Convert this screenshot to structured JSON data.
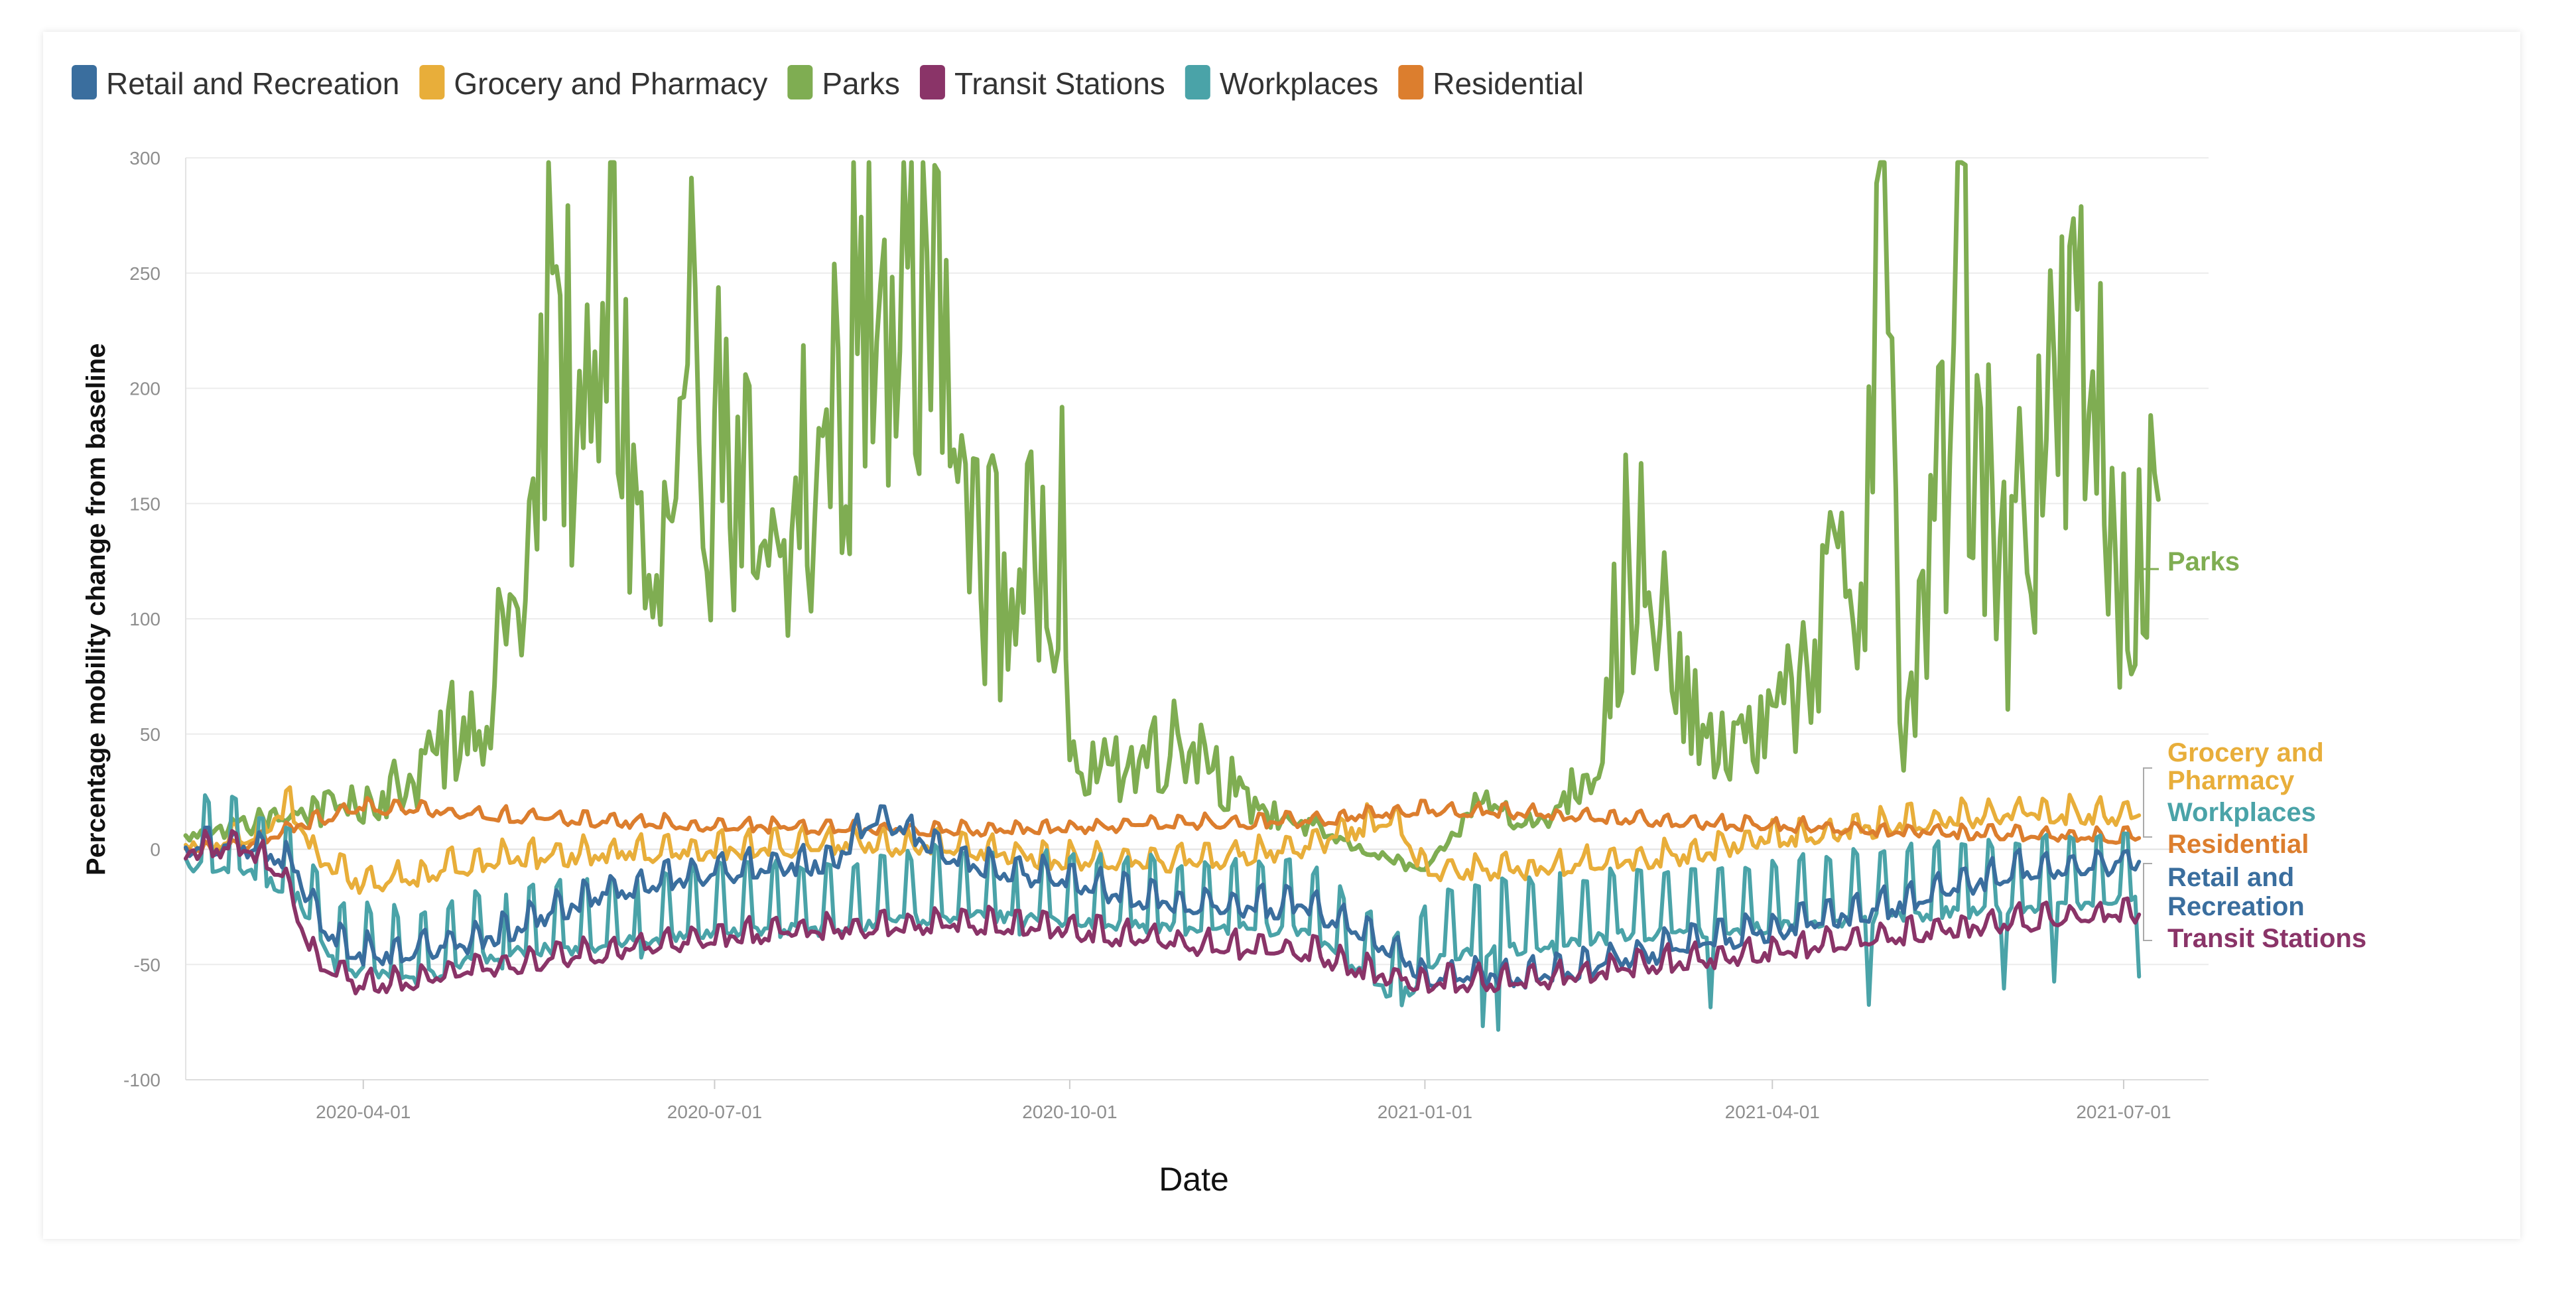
{
  "chart_data": {
    "type": "line",
    "title": "",
    "xlabel": "Date",
    "ylabel": "Percentage mobility change from baseline",
    "ylim": [
      -100,
      300
    ],
    "yticks": [
      -100,
      -50,
      0,
      50,
      100,
      150,
      200,
      250,
      300
    ],
    "xlim": [
      "2020-02-15",
      "2021-07-23"
    ],
    "xticks": [
      "2020-04-01",
      "2020-07-01",
      "2020-10-01",
      "2021-01-01",
      "2021-04-01",
      "2021-07-01"
    ],
    "grid": true,
    "legend_position": "top-left",
    "series": [
      {
        "name": "Retail and Recreation",
        "color": "#3a6e9e",
        "end_label": [
          "Retail and",
          "Recreation"
        ],
        "points": [
          [
            "2020-02-15",
            0
          ],
          [
            "2020-03-01",
            2
          ],
          [
            "2020-03-10",
            -3
          ],
          [
            "2020-03-15",
            -10
          ],
          [
            "2020-03-20",
            -30
          ],
          [
            "2020-03-28",
            -45
          ],
          [
            "2020-04-10",
            -45
          ],
          [
            "2020-05-01",
            -40
          ],
          [
            "2020-06-01",
            -20
          ],
          [
            "2020-07-01",
            -10
          ],
          [
            "2020-08-01",
            -5
          ],
          [
            "2020-08-12",
            15
          ],
          [
            "2020-09-01",
            -5
          ],
          [
            "2020-10-01",
            -15
          ],
          [
            "2020-11-01",
            -25
          ],
          [
            "2020-12-01",
            -25
          ],
          [
            "2020-12-25",
            -45
          ],
          [
            "2021-01-01",
            -55
          ],
          [
            "2021-02-01",
            -55
          ],
          [
            "2021-03-01",
            -45
          ],
          [
            "2021-04-01",
            -35
          ],
          [
            "2021-05-01",
            -25
          ],
          [
            "2021-06-01",
            -10
          ],
          [
            "2021-07-05",
            -5
          ]
        ]
      },
      {
        "name": "Grocery and Pharmacy",
        "color": "#e8ae3a",
        "end_label": [
          "Grocery and",
          "Pharmacy"
        ],
        "points": [
          [
            "2020-02-15",
            2
          ],
          [
            "2020-03-01",
            3
          ],
          [
            "2020-03-13",
            20
          ],
          [
            "2020-03-20",
            -5
          ],
          [
            "2020-04-01",
            -15
          ],
          [
            "2020-04-15",
            -12
          ],
          [
            "2020-05-01",
            -5
          ],
          [
            "2020-06-01",
            -2
          ],
          [
            "2020-07-01",
            0
          ],
          [
            "2020-08-01",
            2
          ],
          [
            "2020-09-01",
            0
          ],
          [
            "2020-10-01",
            -5
          ],
          [
            "2020-11-01",
            -5
          ],
          [
            "2020-12-01",
            0
          ],
          [
            "2020-12-23",
            15
          ],
          [
            "2021-01-01",
            -10
          ],
          [
            "2021-02-01",
            -8
          ],
          [
            "2021-03-01",
            -5
          ],
          [
            "2021-04-01",
            5
          ],
          [
            "2021-05-01",
            10
          ],
          [
            "2021-06-01",
            15
          ],
          [
            "2021-07-05",
            15
          ]
        ]
      },
      {
        "name": "Parks",
        "color": "#7fad52",
        "end_label": [
          "Parks"
        ],
        "points": [
          [
            "2020-02-15",
            5
          ],
          [
            "2020-03-01",
            10
          ],
          [
            "2020-03-15",
            15
          ],
          [
            "2020-04-01",
            20
          ],
          [
            "2020-04-15",
            30
          ],
          [
            "2020-05-01",
            60
          ],
          [
            "2020-05-15",
            120
          ],
          [
            "2020-05-20",
            247
          ],
          [
            "2020-06-01",
            140
          ],
          [
            "2020-06-03",
            248
          ],
          [
            "2020-06-15",
            90
          ],
          [
            "2020-06-28",
            190
          ],
          [
            "2020-07-15",
            100
          ],
          [
            "2020-07-30",
            170
          ],
          [
            "2020-08-12",
            250
          ],
          [
            "2020-08-20",
            285
          ],
          [
            "2020-08-28",
            200
          ],
          [
            "2020-09-01",
            170
          ],
          [
            "2020-09-15",
            100
          ],
          [
            "2020-09-30",
            150
          ],
          [
            "2020-10-01",
            30
          ],
          [
            "2020-10-15",
            35
          ],
          [
            "2020-11-01",
            50
          ],
          [
            "2020-11-15",
            20
          ],
          [
            "2020-12-01",
            10
          ],
          [
            "2020-12-15",
            0
          ],
          [
            "2021-01-01",
            -10
          ],
          [
            "2021-01-15",
            20
          ],
          [
            "2021-02-01",
            10
          ],
          [
            "2021-02-15",
            40
          ],
          [
            "2021-02-22",
            120
          ],
          [
            "2021-03-01",
            90
          ],
          [
            "2021-03-15",
            40
          ],
          [
            "2021-04-01",
            50
          ],
          [
            "2021-04-15",
            100
          ],
          [
            "2021-04-25",
            120
          ],
          [
            "2021-04-29",
            296
          ],
          [
            "2021-05-05",
            40
          ],
          [
            "2021-05-15",
            150
          ],
          [
            "2021-05-20",
            237
          ],
          [
            "2021-06-01",
            110
          ],
          [
            "2021-06-10",
            180
          ],
          [
            "2021-06-20",
            205
          ],
          [
            "2021-07-01",
            120
          ],
          [
            "2021-07-10",
            125
          ]
        ]
      },
      {
        "name": "Transit Stations",
        "color": "#8a3468",
        "end_label": [
          "Transit Stations"
        ],
        "points": [
          [
            "2020-02-15",
            0
          ],
          [
            "2020-03-01",
            0
          ],
          [
            "2020-03-10",
            -8
          ],
          [
            "2020-03-20",
            -50
          ],
          [
            "2020-04-01",
            -60
          ],
          [
            "2020-04-15",
            -58
          ],
          [
            "2020-05-01",
            -52
          ],
          [
            "2020-06-01",
            -45
          ],
          [
            "2020-07-01",
            -38
          ],
          [
            "2020-08-01",
            -35
          ],
          [
            "2020-09-01",
            -32
          ],
          [
            "2020-10-01",
            -35
          ],
          [
            "2020-11-01",
            -42
          ],
          [
            "2020-12-01",
            -45
          ],
          [
            "2020-12-22",
            -55
          ],
          [
            "2021-01-01",
            -58
          ],
          [
            "2021-02-01",
            -57
          ],
          [
            "2021-03-01",
            -50
          ],
          [
            "2021-04-01",
            -45
          ],
          [
            "2021-05-01",
            -38
          ],
          [
            "2021-06-01",
            -32
          ],
          [
            "2021-07-05",
            -28
          ]
        ]
      },
      {
        "name": "Workplaces",
        "color": "#4aa3a8",
        "end_label": [
          "Workplaces"
        ],
        "points": [
          [
            "2020-02-15",
            0
          ],
          [
            "2020-03-01",
            -2
          ],
          [
            "2020-03-15",
            -15
          ],
          [
            "2020-03-25",
            -45
          ],
          [
            "2020-04-15",
            -50
          ],
          [
            "2020-05-01",
            -40
          ],
          [
            "2020-06-01",
            -35
          ],
          [
            "2020-07-01",
            -30
          ],
          [
            "2020-08-01",
            -28
          ],
          [
            "2020-09-01",
            -22
          ],
          [
            "2020-10-01",
            -25
          ],
          [
            "2020-11-01",
            -28
          ],
          [
            "2020-12-01",
            -28
          ],
          [
            "2020-12-25",
            -60
          ],
          [
            "2021-01-05",
            -40
          ],
          [
            "2021-02-01",
            -35
          ],
          [
            "2021-03-01",
            -30
          ],
          [
            "2021-04-01",
            -28
          ],
          [
            "2021-05-01",
            -22
          ],
          [
            "2021-06-01",
            -20
          ],
          [
            "2021-07-05",
            -15
          ]
        ]
      },
      {
        "name": "Residential",
        "color": "#dc7e2e",
        "end_label": [
          "Residential"
        ],
        "points": [
          [
            "2020-02-15",
            0
          ],
          [
            "2020-03-01",
            1
          ],
          [
            "2020-03-15",
            10
          ],
          [
            "2020-04-01",
            18
          ],
          [
            "2020-04-15",
            17
          ],
          [
            "2020-05-01",
            15
          ],
          [
            "2020-06-01",
            12
          ],
          [
            "2020-07-01",
            10
          ],
          [
            "2020-08-01",
            9
          ],
          [
            "2020-09-01",
            8
          ],
          [
            "2020-10-01",
            9
          ],
          [
            "2020-11-01",
            11
          ],
          [
            "2020-12-01",
            12
          ],
          [
            "2021-01-01",
            17
          ],
          [
            "2021-02-01",
            15
          ],
          [
            "2021-03-01",
            12
          ],
          [
            "2021-04-01",
            10
          ],
          [
            "2021-05-01",
            8
          ],
          [
            "2021-06-01",
            6
          ],
          [
            "2021-07-05",
            5
          ]
        ]
      }
    ],
    "annotations": [
      {
        "label": "Grocery and Pharmacy",
        "color": "#e8ae3a"
      },
      {
        "label": "Workplaces",
        "color": "#4aa3a8"
      },
      {
        "label": "Residential",
        "color": "#dc7e2e"
      },
      {
        "label": "Retail and Recreation",
        "color": "#3a6e9e"
      },
      {
        "label": "Transit Stations",
        "color": "#8a3468"
      },
      {
        "label": "Parks",
        "color": "#7fad52"
      }
    ]
  }
}
